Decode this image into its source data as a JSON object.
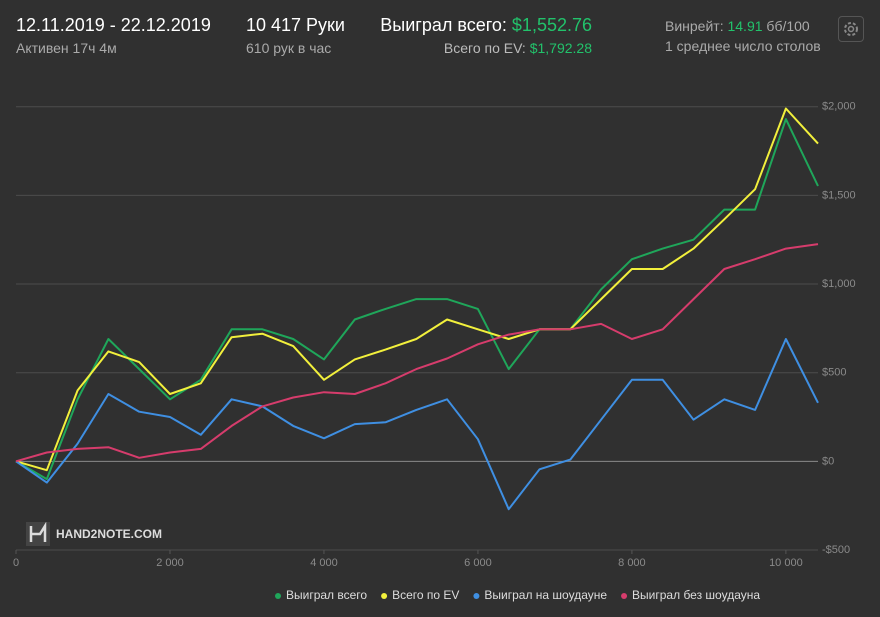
{
  "header": {
    "date_range": "12.11.2019 - 22.12.2019",
    "active": "Активен 17ч 4м",
    "hands": "10 417 Руки",
    "hands_per_hour": "610 рук в час",
    "won_label": "Выиграл всего:",
    "won_value": "$1,552.76",
    "ev_label": "Всего по EV:",
    "ev_value": "$1,792.28",
    "winrate_label": "Винрейт:",
    "winrate_value": "14.91",
    "winrate_unit": "бб/100",
    "tables": "1 среднее число столов"
  },
  "logo": "HAND2NOTE.COM",
  "chart_data": {
    "type": "line",
    "x": [
      0,
      400,
      800,
      1200,
      1600,
      2000,
      2400,
      2800,
      3200,
      3600,
      4000,
      4400,
      4800,
      5200,
      5600,
      6000,
      6400,
      6800,
      7200,
      7600,
      8000,
      8400,
      8800,
      9200,
      9600,
      10000,
      10417
    ],
    "series": [
      {
        "name": "Выиграл всего",
        "color": "#1fa65a",
        "values": [
          0,
          -100,
          350,
          690,
          520,
          350,
          460,
          745,
          745,
          690,
          575,
          800,
          860,
          915,
          915,
          860,
          520,
          745,
          745,
          970,
          1140,
          1200,
          1250,
          1420,
          1420,
          1930,
          1552.76
        ]
      },
      {
        "name": "Всего по EV",
        "color": "#f2f03c",
        "values": [
          0,
          -50,
          400,
          620,
          560,
          380,
          440,
          700,
          720,
          650,
          460,
          575,
          630,
          690,
          800,
          745,
          690,
          745,
          745,
          915,
          1085,
          1085,
          1200,
          1365,
          1535,
          1990,
          1792.28
        ]
      },
      {
        "name": "Выиграл на шоудауне",
        "color": "#3f8fe2",
        "values": [
          0,
          -120,
          100,
          380,
          280,
          250,
          150,
          350,
          310,
          200,
          130,
          210,
          220,
          290,
          350,
          125,
          -270,
          -45,
          10,
          235,
          460,
          460,
          235,
          350,
          290,
          690,
          330
        ]
      },
      {
        "name": "Выиграл без шоудауна",
        "color": "#d63c6c",
        "values": [
          0,
          50,
          70,
          80,
          20,
          50,
          70,
          200,
          310,
          360,
          390,
          380,
          440,
          520,
          580,
          660,
          715,
          745,
          745,
          775,
          690,
          745,
          915,
          1085,
          1140,
          1200,
          1225
        ]
      }
    ],
    "xlim": [
      0,
      10417
    ],
    "ylim": [
      -500,
      2100
    ],
    "xticks": [
      0,
      {
        "value": 2000,
        "label": "2 000"
      },
      {
        "value": 4000,
        "label": "4 000"
      },
      {
        "value": 6000,
        "label": "6 000"
      },
      {
        "value": 8000,
        "label": "8 000"
      },
      {
        "value": 10000,
        "label": "10 000"
      }
    ],
    "yticks": [
      {
        "value": -500,
        "label": "-$500"
      },
      {
        "value": 0,
        "label": "$0"
      },
      {
        "value": 500,
        "label": "$500"
      },
      {
        "value": 1000,
        "label": "$1,000"
      },
      {
        "value": 1500,
        "label": "$1,500"
      },
      {
        "value": 2000,
        "label": "$2,000"
      }
    ],
    "grid": true
  }
}
